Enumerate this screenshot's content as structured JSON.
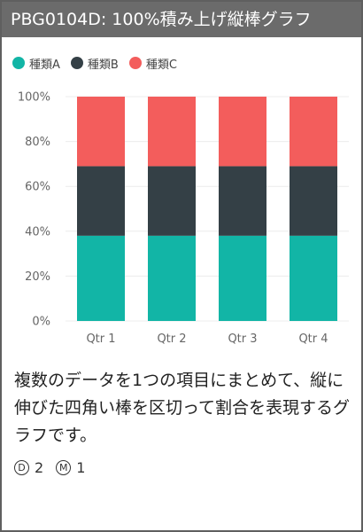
{
  "header": {
    "title": "PBG0104D: 100%積み上げ縦棒グラフ"
  },
  "colors": {
    "series_a": "#12b5a6",
    "series_b": "#344046",
    "series_c": "#f35d5c"
  },
  "chart_data": {
    "type": "bar",
    "stacked": "percent",
    "categories": [
      "Qtr 1",
      "Qtr 2",
      "Qtr 3",
      "Qtr 4"
    ],
    "series": [
      {
        "name": "種類A",
        "values": [
          38,
          38,
          38,
          38
        ]
      },
      {
        "name": "種類B",
        "values": [
          31,
          31,
          31,
          31
        ]
      },
      {
        "name": "種類C",
        "values": [
          31,
          31,
          31,
          31
        ]
      }
    ],
    "yticks": [
      "0%",
      "20%",
      "40%",
      "60%",
      "80%",
      "100%"
    ],
    "ylim": [
      0,
      100
    ],
    "grid": true,
    "legend_position": "top-left"
  },
  "description": "複数のデータを1つの項目にまとめて、縦に伸びた四角い棒を区切って割合を表現するグラフです。",
  "meta": {
    "d_icon_letter": "D",
    "d_value": "2",
    "m_icon_letter": "M",
    "m_value": "1"
  }
}
